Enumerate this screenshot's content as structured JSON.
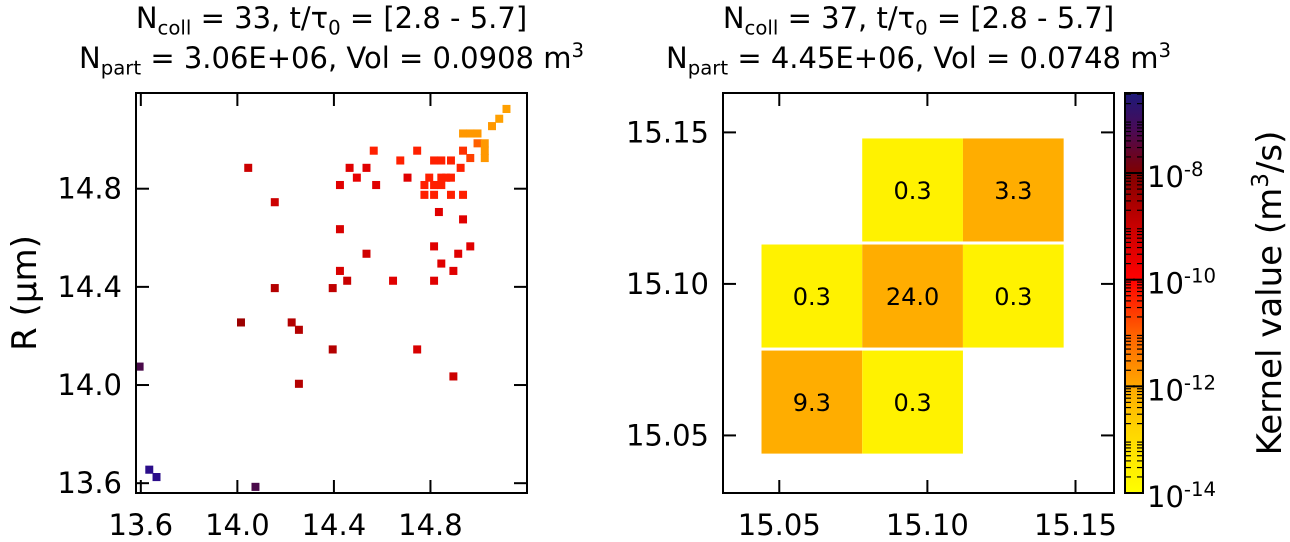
{
  "chart_data": [
    {
      "type": "heatmap",
      "title_lines": [
        [
          {
            "t": "N",
            "s": "n"
          },
          {
            "t": "coll",
            "s": "sub"
          },
          {
            "t": " = 33, t/τ",
            "s": "n"
          },
          {
            "t": "0",
            "s": "sub"
          },
          {
            "t": " = [2.8 - 5.7]",
            "s": "n"
          }
        ],
        [
          {
            "t": "N",
            "s": "n"
          },
          {
            "t": "part",
            "s": "sub"
          },
          {
            "t": " = 3.06E+06, Vol = 0.0908 m",
            "s": "n"
          },
          {
            "t": "3",
            "s": "sup"
          }
        ]
      ],
      "ylabel": "R (µm)",
      "xlabel": "",
      "xlim": [
        13.58,
        15.2
      ],
      "ylim": [
        13.56,
        15.19
      ],
      "xticks": [
        13.6,
        14.0,
        14.4,
        14.8
      ],
      "yticks": [
        13.6,
        14.0,
        14.4,
        14.8
      ],
      "tick_labels": [
        "13.6",
        "14.0",
        "14.4",
        "14.8"
      ],
      "cell_size": 0.033,
      "cells": [
        [
          13.595,
          14.075,
          "#4a0a4a"
        ],
        [
          13.635,
          13.655,
          "#2b0d8a"
        ],
        [
          13.665,
          13.625,
          "#2b0d8a"
        ],
        [
          14.075,
          13.585,
          "#4a0a4a"
        ],
        [
          14.015,
          14.255,
          "#9c0000"
        ],
        [
          14.045,
          14.885,
          "#cc0000"
        ],
        [
          14.155,
          14.745,
          "#cc0000"
        ],
        [
          14.155,
          14.395,
          "#b40000"
        ],
        [
          14.225,
          14.255,
          "#b40000"
        ],
        [
          14.255,
          14.225,
          "#b40000"
        ],
        [
          14.255,
          14.005,
          "#b40000"
        ],
        [
          14.395,
          14.145,
          "#b40000"
        ],
        [
          14.395,
          14.395,
          "#c00000"
        ],
        [
          14.425,
          14.465,
          "#d80000"
        ],
        [
          14.455,
          14.425,
          "#c80000"
        ],
        [
          14.425,
          14.635,
          "#d80000"
        ],
        [
          14.425,
          14.815,
          "#e00000"
        ],
        [
          14.465,
          14.885,
          "#e00000"
        ],
        [
          14.495,
          14.845,
          "#e80000"
        ],
        [
          14.535,
          14.885,
          "#e00000"
        ],
        [
          14.535,
          14.535,
          "#d00000"
        ],
        [
          14.565,
          14.955,
          "#ff2000"
        ],
        [
          14.575,
          14.815,
          "#e00000"
        ],
        [
          14.645,
          14.425,
          "#e00000"
        ],
        [
          14.675,
          14.915,
          "#ff2000"
        ],
        [
          14.705,
          14.845,
          "#e00000"
        ],
        [
          14.745,
          14.955,
          "#ff2000"
        ],
        [
          14.745,
          14.145,
          "#d80000"
        ],
        [
          14.775,
          14.815,
          "#ff2000"
        ],
        [
          14.775,
          14.775,
          "#ff2000"
        ],
        [
          14.795,
          14.845,
          "#ff2000"
        ],
        [
          14.815,
          14.915,
          "#ff2000"
        ],
        [
          14.815,
          14.815,
          "#ff2000"
        ],
        [
          14.815,
          14.775,
          "#ff2000"
        ],
        [
          14.815,
          14.565,
          "#e00000"
        ],
        [
          14.815,
          14.425,
          "#e00000"
        ],
        [
          14.835,
          14.705,
          "#e00000"
        ],
        [
          14.845,
          14.915,
          "#ff2000"
        ],
        [
          14.845,
          14.845,
          "#ff2000"
        ],
        [
          14.845,
          14.815,
          "#ff2000"
        ],
        [
          14.845,
          14.495,
          "#e00000"
        ],
        [
          14.865,
          14.845,
          "#ff2000"
        ],
        [
          14.885,
          14.775,
          "#ff2000"
        ],
        [
          14.885,
          14.845,
          "#ff2000"
        ],
        [
          14.885,
          14.915,
          "#ff2000"
        ],
        [
          14.895,
          14.465,
          "#e00000"
        ],
        [
          14.895,
          14.035,
          "#cc0000"
        ],
        [
          14.915,
          14.535,
          "#e00000"
        ],
        [
          14.925,
          14.885,
          "#ff2000"
        ],
        [
          14.935,
          14.955,
          "#ff3000"
        ],
        [
          14.935,
          14.775,
          "#ff2000"
        ],
        [
          14.935,
          14.675,
          "#e00000"
        ],
        [
          14.935,
          15.025,
          "#ff9800"
        ],
        [
          14.965,
          15.025,
          "#ff9800"
        ],
        [
          14.965,
          14.925,
          "#ff4000"
        ],
        [
          14.965,
          14.565,
          "#e00000"
        ],
        [
          14.995,
          15.025,
          "#ff9800"
        ],
        [
          14.995,
          14.985,
          "#ff6000"
        ],
        [
          15.025,
          14.955,
          "#ff9800"
        ],
        [
          15.025,
          14.925,
          "#ff9800"
        ],
        [
          15.025,
          14.985,
          "#ff9800"
        ],
        [
          15.055,
          15.055,
          "#ff9800"
        ],
        [
          15.085,
          15.085,
          "#ffa000"
        ],
        [
          15.115,
          15.125,
          "#ffa000"
        ]
      ]
    },
    {
      "type": "heatmap",
      "title_lines": [
        [
          {
            "t": "N",
            "s": "n"
          },
          {
            "t": "coll",
            "s": "sub"
          },
          {
            "t": " = 37, t/τ",
            "s": "n"
          },
          {
            "t": "0",
            "s": "sub"
          },
          {
            "t": " = [2.8 - 5.7]",
            "s": "n"
          }
        ],
        [
          {
            "t": "N",
            "s": "n"
          },
          {
            "t": "part",
            "s": "sub"
          },
          {
            "t": " = 4.45E+06, Vol = 0.0748 m",
            "s": "n"
          },
          {
            "t": "3",
            "s": "sup"
          }
        ]
      ],
      "xlabel": "",
      "ylabel": "",
      "xlim": [
        15.031,
        15.163
      ],
      "ylim": [
        15.031,
        15.163
      ],
      "xticks": [
        15.05,
        15.1,
        15.15
      ],
      "yticks": [
        15.05,
        15.1,
        15.15
      ],
      "tick_labels": [
        "15.05",
        "15.10",
        "15.15"
      ],
      "cell_size": 0.034,
      "cells": [
        [
          15.061,
          15.061,
          "#ffad00",
          "9.3"
        ],
        [
          15.095,
          15.061,
          "#fff200",
          "0.3"
        ],
        [
          15.061,
          15.096,
          "#fff200",
          "0.3"
        ],
        [
          15.095,
          15.096,
          "#ffad00",
          "24.0"
        ],
        [
          15.129,
          15.096,
          "#fff200",
          "0.3"
        ],
        [
          15.095,
          15.131,
          "#fff200",
          "0.3"
        ],
        [
          15.129,
          15.131,
          "#ffad00",
          "3.3"
        ]
      ]
    }
  ],
  "colorbar": {
    "label_parts": [
      {
        "t": "Kernel value (m",
        "s": "n"
      },
      {
        "t": "3",
        "s": "sup"
      },
      {
        "t": "/s)",
        "s": "n"
      }
    ],
    "log_range": [
      -14,
      -6.5
    ],
    "ticks": [
      {
        "exp": -14,
        "base": "10",
        "e": "-14"
      },
      {
        "exp": -12,
        "base": "10",
        "e": "-12"
      },
      {
        "exp": -10,
        "base": "10",
        "e": "-10"
      },
      {
        "exp": -8,
        "base": "10",
        "e": "-8"
      }
    ],
    "stops": [
      {
        "exp": -14,
        "color": "#ffff00"
      },
      {
        "exp": -12.8,
        "color": "#ffd400"
      },
      {
        "exp": -12,
        "color": "#ffa800"
      },
      {
        "exp": -11,
        "color": "#ff6000"
      },
      {
        "exp": -10,
        "color": "#ff0000"
      },
      {
        "exp": -9,
        "color": "#c80000"
      },
      {
        "exp": -8,
        "color": "#800000"
      },
      {
        "exp": -7.2,
        "color": "#4a0a55"
      },
      {
        "exp": -6.5,
        "color": "#1c1a7a"
      }
    ]
  }
}
